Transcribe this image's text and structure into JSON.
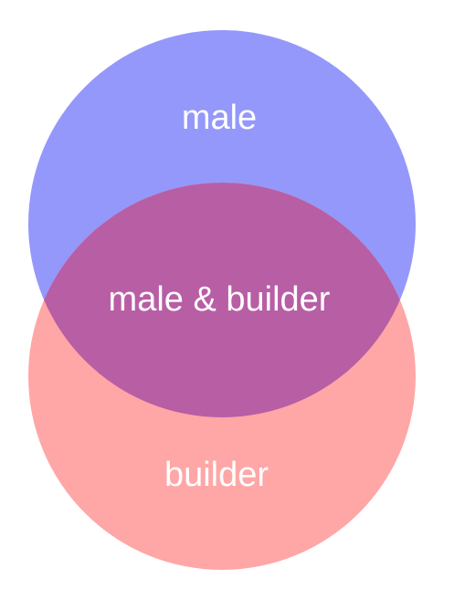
{
  "diagram": {
    "type": "venn",
    "sets": [
      {
        "key": "top",
        "label": "male",
        "color": "#9498fb"
      },
      {
        "key": "bottom",
        "label": "builder",
        "color": "#ffa6a6"
      }
    ],
    "intersection": {
      "label": "male & builder",
      "color": "#b85ea5"
    }
  }
}
